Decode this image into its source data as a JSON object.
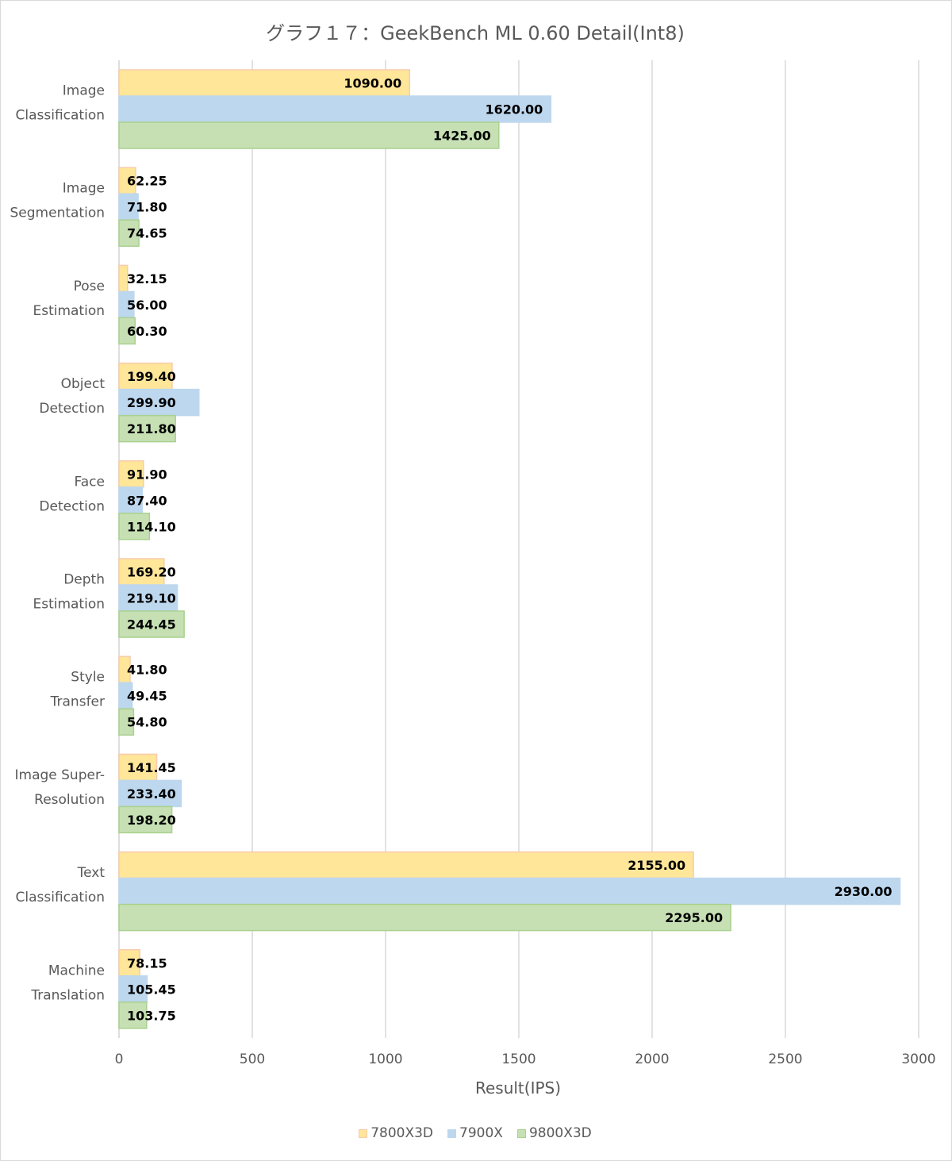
{
  "chart_data": {
    "type": "bar",
    "orientation": "horizontal",
    "title": "グラフ１７：GeekBench ML 0.60 Detail(Int8)",
    "xlabel": "Result(IPS)",
    "ylabel": "",
    "xlim": [
      0,
      3000
    ],
    "xticks": [
      "0",
      "500",
      "1000",
      "1500",
      "2000",
      "2500",
      "3000"
    ],
    "grid": true,
    "legend_position": "bottom",
    "categories": [
      [
        "Image",
        "Classification"
      ],
      [
        "Image",
        "Segmentation"
      ],
      [
        "Pose",
        "Estimation"
      ],
      [
        "Object",
        "Detection"
      ],
      [
        "Face",
        "Detection"
      ],
      [
        "Depth",
        "Estimation"
      ],
      [
        "Style",
        "Transfer"
      ],
      [
        "Image Super-",
        "Resolution"
      ],
      [
        "Text",
        "Classification"
      ],
      [
        "Machine",
        "Translation"
      ]
    ],
    "series": [
      {
        "name": "7800X3D",
        "fill": "#ffe699",
        "stroke": "#f8cbad",
        "values": [
          1090.0,
          62.25,
          32.15,
          199.4,
          91.9,
          169.2,
          41.8,
          141.45,
          2155.0,
          78.15
        ],
        "labels": [
          "1090.00",
          "62.25",
          "32.15",
          "199.40",
          "91.90",
          "169.20",
          "41.80",
          "141.45",
          "2155.00",
          "78.15"
        ]
      },
      {
        "name": "7900X",
        "fill": "#bdd7ee",
        "stroke": "#bdd7ee",
        "values": [
          1620.0,
          71.8,
          56.0,
          299.9,
          87.4,
          219.1,
          49.45,
          233.4,
          2930.0,
          105.45
        ],
        "labels": [
          "1620.00",
          "71.80",
          "56.00",
          "299.90",
          "87.40",
          "219.10",
          "49.45",
          "233.40",
          "2930.00",
          "105.45"
        ]
      },
      {
        "name": "9800X3D",
        "fill": "#c6e0b4",
        "stroke": "#a9d18e",
        "values": [
          1425.0,
          74.65,
          60.3,
          211.8,
          114.1,
          244.45,
          54.8,
          198.2,
          2295.0,
          103.75
        ],
        "labels": [
          "1425.00",
          "74.65",
          "60.30",
          "211.80",
          "114.10",
          "244.45",
          "54.80",
          "198.20",
          "2295.00",
          "103.75"
        ]
      }
    ]
  }
}
